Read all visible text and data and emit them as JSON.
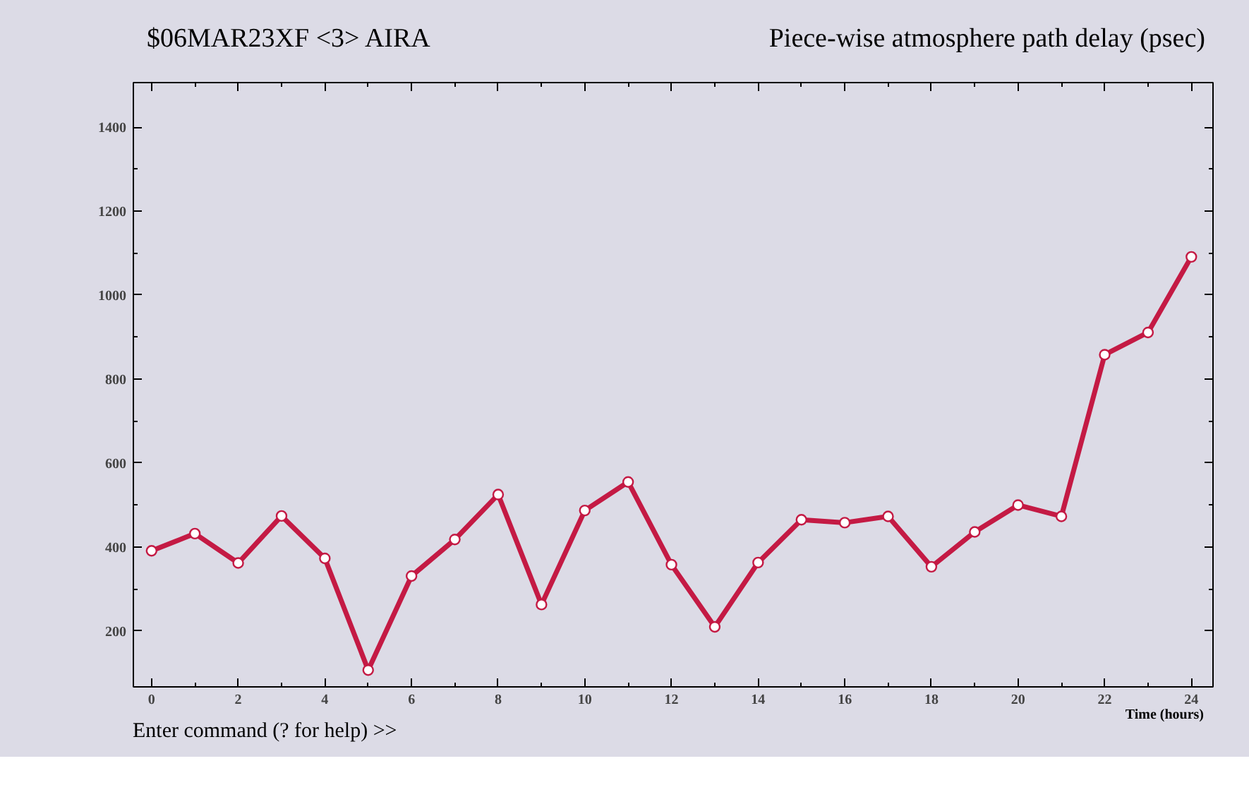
{
  "chart_data": {
    "type": "line",
    "title": "$06MAR23XF <3>  AIRA",
    "subtitle": "Piece-wise atmosphere path delay (psec)",
    "xlabel": "Time (hours)",
    "annotations": [
      "Enter command (? for help) >>"
    ],
    "x": [
      0,
      1,
      2,
      3,
      4,
      5,
      6,
      7,
      8,
      9,
      10,
      11,
      12,
      13,
      14,
      15,
      16,
      17,
      18,
      19,
      20,
      21,
      22,
      23,
      24
    ],
    "series": [
      {
        "color": "#c41a44",
        "values": [
          391,
          432,
          362,
          474,
          373,
          107,
          331,
          418,
          525,
          263,
          487,
          555,
          358,
          210,
          363,
          465,
          458,
          473,
          353,
          436,
          500,
          473,
          858,
          911,
          1091
        ]
      }
    ],
    "xlim": [
      -0.42,
      24.5
    ],
    "ylim": [
      67,
      1506
    ],
    "xticks": [
      0,
      2,
      4,
      6,
      8,
      10,
      12,
      14,
      16,
      18,
      20,
      22,
      24
    ],
    "yticks": [
      200,
      400,
      600,
      800,
      1000,
      1200,
      1400
    ],
    "marker": "circle",
    "line_style": "solid",
    "grid": false
  }
}
